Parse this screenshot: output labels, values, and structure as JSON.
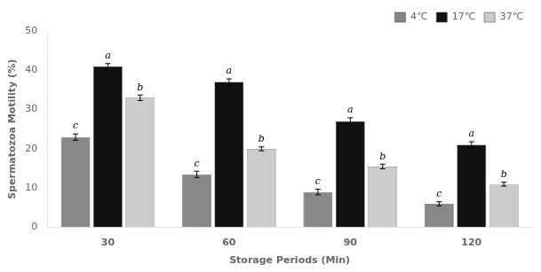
{
  "chart_data": {
    "type": "bar",
    "categories": [
      "30",
      "60",
      "90",
      "120"
    ],
    "series": [
      {
        "name": "4℃",
        "color": "#888888",
        "values": [
          23,
          13.5,
          9,
          6
        ],
        "errors": [
          0.8,
          0.8,
          0.7,
          0.5
        ],
        "annotations": [
          "c",
          "c",
          "c",
          "c"
        ]
      },
      {
        "name": "17℃",
        "color": "#111111",
        "values": [
          41,
          37,
          27,
          21
        ],
        "errors": [
          0.7,
          0.8,
          0.9,
          0.8
        ],
        "annotations": [
          "a",
          "a",
          "a",
          "a"
        ]
      },
      {
        "name": "37℃",
        "color": "#cccccc",
        "values": [
          33,
          20,
          15.5,
          11
        ],
        "errors": [
          0.7,
          0.5,
          0.6,
          0.5
        ],
        "annotations": [
          "b",
          "b",
          "b",
          "b"
        ]
      }
    ],
    "xlabel": "Storage Periods (Min)",
    "ylabel": "Spermatozoa Motility (%)",
    "ylim": [
      0,
      50
    ],
    "yticks": [
      0,
      10,
      20,
      30,
      40,
      50
    ],
    "legend": "upper right",
    "grid": false
  }
}
